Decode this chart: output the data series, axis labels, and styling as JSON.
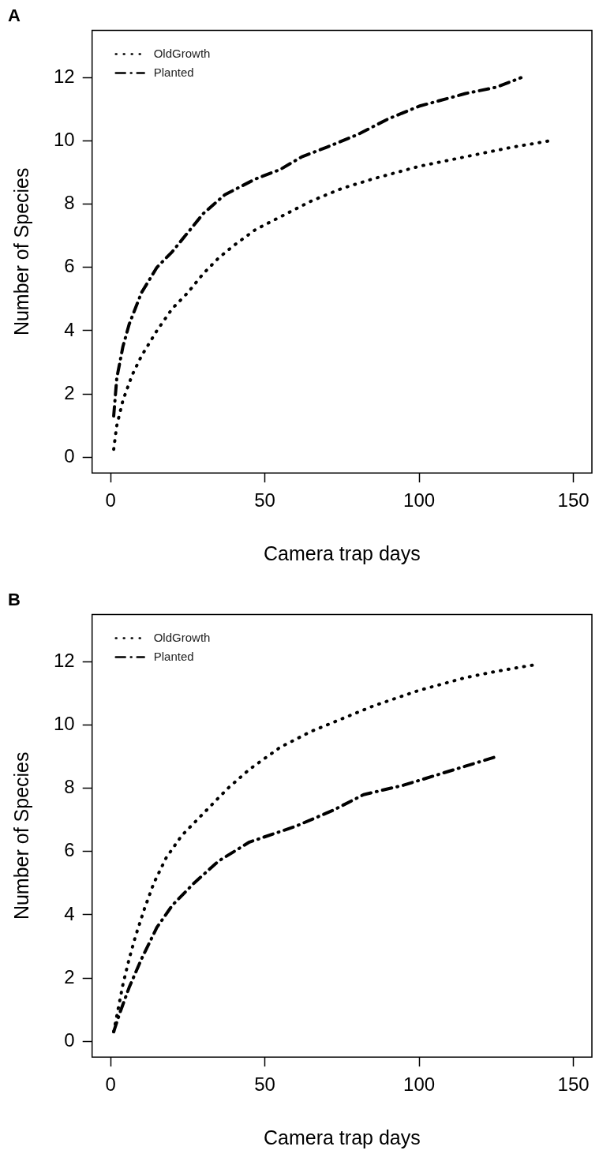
{
  "chart_data": [
    {
      "type": "line",
      "title": "A",
      "xlabel": "Camera trap days",
      "ylabel": "Number of Species",
      "xlim": [
        -6,
        156
      ],
      "ylim": [
        -0.5,
        13.5
      ],
      "xticks": [
        0,
        50,
        100,
        150
      ],
      "yticks": [
        0,
        2,
        4,
        6,
        8,
        10,
        12
      ],
      "grid": false,
      "legend": "top left",
      "series": [
        {
          "name": "OldGrowth",
          "color": "#000000",
          "line_style": "dotted",
          "x": [
            1,
            2,
            4,
            7,
            10,
            15,
            20,
            25,
            30,
            35,
            40,
            47,
            55,
            65,
            75,
            85,
            100,
            115,
            130,
            142
          ],
          "values": [
            0.25,
            1,
            1.8,
            2.6,
            3.2,
            4,
            4.7,
            5.2,
            5.8,
            6.3,
            6.7,
            7.2,
            7.6,
            8.1,
            8.5,
            8.8,
            9.2,
            9.5,
            9.8,
            10
          ]
        },
        {
          "name": "Planted",
          "color": "#000000",
          "line_style": "dashed",
          "x": [
            1,
            2,
            4,
            6,
            10,
            15,
            20,
            25,
            30,
            37,
            47,
            55,
            62,
            70,
            80,
            90,
            100,
            115,
            125,
            133
          ],
          "values": [
            1.3,
            2.5,
            3.5,
            4.2,
            5.2,
            6,
            6.5,
            7.1,
            7.7,
            8.3,
            8.8,
            9.1,
            9.5,
            9.8,
            10.2,
            10.7,
            11.1,
            11.5,
            11.7,
            12
          ]
        }
      ]
    },
    {
      "type": "line",
      "title": "B",
      "xlabel": "Camera trap days",
      "ylabel": "Number of Species",
      "xlim": [
        -6,
        156
      ],
      "ylim": [
        -0.5,
        13.5
      ],
      "xticks": [
        0,
        50,
        100,
        150
      ],
      "yticks": [
        0,
        2,
        4,
        6,
        8,
        10,
        12
      ],
      "grid": false,
      "legend": "top left",
      "series": [
        {
          "name": "OldGrowth",
          "color": "#000000",
          "line_style": "dotted",
          "x": [
            1,
            2,
            4,
            6,
            8,
            11,
            14,
            18,
            23,
            30,
            38,
            45,
            55,
            65,
            75,
            85,
            100,
            115,
            125,
            137
          ],
          "values": [
            0.3,
            0.8,
            1.8,
            2.6,
            3.3,
            4.2,
            5,
            5.8,
            6.5,
            7.2,
            8,
            8.6,
            9.3,
            9.8,
            10.2,
            10.6,
            11.1,
            11.5,
            11.7,
            11.9
          ]
        },
        {
          "name": "Planted",
          "color": "#000000",
          "line_style": "dashed",
          "x": [
            1,
            3,
            6,
            10,
            15,
            20,
            27,
            35,
            45,
            60,
            72,
            82,
            95,
            105,
            115,
            125
          ],
          "values": [
            0.3,
            0.9,
            1.7,
            2.6,
            3.6,
            4.3,
            5,
            5.7,
            6.3,
            6.8,
            7.3,
            7.8,
            8.1,
            8.4,
            8.7,
            9
          ]
        }
      ]
    }
  ]
}
